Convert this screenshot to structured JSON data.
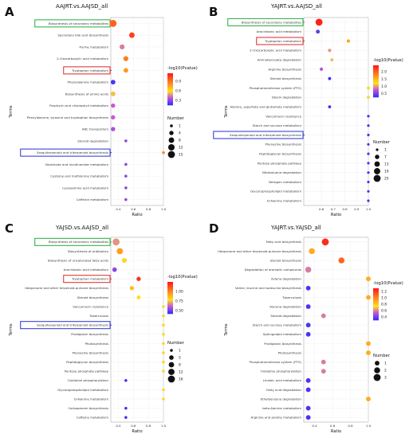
{
  "chart_data": [
    {
      "panel": "A",
      "type": "scatter",
      "title": "AAJRT.vs.AAJSD_all",
      "xlabel": "Ratio",
      "ylabel": "Terms",
      "xlim": [
        0.3,
        1.0
      ],
      "xticks": [
        0.4,
        0.6,
        0.8,
        1.0
      ],
      "xtick_labels": [
        "0.4",
        "0.6",
        "0.8",
        "1.0"
      ],
      "terms": [
        "Biosynthesis of secondary metabolites",
        "Secondary bile acid biosynthesis",
        "Purine metabolism",
        "2-Oxocarboxylic acid metabolism",
        "Tryptophan metabolism",
        "Phenylalanine metabolism",
        "Biosynthesis of amino acids",
        "Porphyrin and chlorophyll metabolism",
        "Phenylalanine, tyrosine and tryptophan biosynthesis",
        "ABC transporters",
        "Steroid degradation",
        "Sesquiterpenoid and triterpenoid biosynthesis",
        "Nicotinate and nicotinamide metabolism",
        "Cysteine and methionine metabolism",
        "Cyanoamino acid metabolism",
        "Caffeine metabolism"
      ],
      "points": [
        {
          "ratio": 0.33,
          "pval": 0.95,
          "number": 15
        },
        {
          "ratio": 0.58,
          "pval": 1.05,
          "number": 8
        },
        {
          "ratio": 0.45,
          "pval": 0.45,
          "number": 6
        },
        {
          "ratio": 0.5,
          "pval": 0.88,
          "number": 6
        },
        {
          "ratio": 0.5,
          "pval": 0.8,
          "number": 5
        },
        {
          "ratio": 0.33,
          "pval": 0.2,
          "number": 5
        },
        {
          "ratio": 0.33,
          "pval": 0.55,
          "number": 5
        },
        {
          "ratio": 0.33,
          "pval": 0.4,
          "number": 4
        },
        {
          "ratio": 0.33,
          "pval": 0.4,
          "number": 4
        },
        {
          "ratio": 0.33,
          "pval": 0.35,
          "number": 4
        },
        {
          "ratio": 0.5,
          "pval": 0.3,
          "number": 1
        },
        {
          "ratio": 1.0,
          "pval": 0.85,
          "number": 1
        },
        {
          "ratio": 0.5,
          "pval": 0.3,
          "number": 1
        },
        {
          "ratio": 0.5,
          "pval": 0.3,
          "number": 1
        },
        {
          "ratio": 0.5,
          "pval": 0.3,
          "number": 1
        },
        {
          "ratio": 0.5,
          "pval": 0.3,
          "number": 1
        }
      ],
      "color_legend": {
        "title": "-log10(Pvalue)",
        "min": 0.15,
        "max": 1.15,
        "ticks": [
          0.9,
          0.6,
          0.3
        ],
        "tick_labels": [
          "0.9",
          "0.6",
          "0.3"
        ]
      },
      "size_legend": {
        "title": "Number",
        "values": [
          1,
          4,
          8,
          12,
          15
        ],
        "labels": [
          "1",
          "4",
          "8",
          "12",
          "15"
        ],
        "max": 15
      },
      "boxes": [
        {
          "index": 0,
          "color": "#1fae3c"
        },
        {
          "index": 4,
          "color": "#e0262a"
        },
        {
          "index": 11,
          "color": "#2630d9"
        }
      ]
    },
    {
      "panel": "B",
      "type": "scatter",
      "title": "YAJRT.vs.AAJSD_all",
      "xlabel": "Ratio",
      "ylabel": "Terms",
      "xlim": [
        0.45,
        1.0
      ],
      "xticks": [
        0.6,
        0.7,
        0.8,
        0.9,
        1.0
      ],
      "xtick_labels": [
        "0.6",
        "0.7",
        "0.8",
        "0.9",
        "1.0"
      ],
      "terms": [
        "Biosynthesis of secondary metabolites",
        "Arachidonic acid metabolism",
        "Tryptophan metabolism",
        "2-Oxocarboxylic acid metabolism",
        "Aminobenzoate degradation",
        "Arginine biosynthesis",
        "Steroid biosynthesis",
        "Phosphotransferase system (PTS)",
        "Dioxin degradation",
        "Alanine, aspartate and glutamate metabolism",
        "Vancomycin resistance",
        "Starch and sucrose metabolism",
        "Sesquiterpenoid and triterpenoid biosynthesis",
        "Phenazine biosynthesis",
        "Peptidoglycan biosynthesis",
        "Pentose phosphate pathway",
        "Nitrotoluene degradation",
        "Nitrogen metabolism",
        "Glycerophospholipid metabolism",
        "D-Alanine metabolism"
      ],
      "points": [
        {
          "ratio": 0.58,
          "pval": 2.4,
          "number": 25
        },
        {
          "ratio": 0.57,
          "pval": 0.45,
          "number": 5
        },
        {
          "ratio": 0.83,
          "pval": 1.6,
          "number": 3
        },
        {
          "ratio": 0.67,
          "pval": 1.0,
          "number": 3
        },
        {
          "ratio": 0.69,
          "pval": 1.1,
          "number": 2
        },
        {
          "ratio": 0.6,
          "pval": 0.75,
          "number": 3
        },
        {
          "ratio": 0.67,
          "pval": 0.3,
          "number": 2
        },
        {
          "ratio": 1.0,
          "pval": 1.3,
          "number": 2
        },
        {
          "ratio": 1.0,
          "pval": 1.2,
          "number": 2
        },
        {
          "ratio": 0.67,
          "pval": 0.3,
          "number": 2
        },
        {
          "ratio": 1.0,
          "pval": 0.35,
          "number": 1
        },
        {
          "ratio": 1.0,
          "pval": 0.35,
          "number": 1
        },
        {
          "ratio": 1.0,
          "pval": 0.35,
          "number": 1
        },
        {
          "ratio": 1.0,
          "pval": 0.35,
          "number": 1
        },
        {
          "ratio": 1.0,
          "pval": 0.35,
          "number": 1
        },
        {
          "ratio": 1.0,
          "pval": 0.35,
          "number": 1
        },
        {
          "ratio": 1.0,
          "pval": 0.35,
          "number": 1
        },
        {
          "ratio": 1.0,
          "pval": 0.35,
          "number": 1
        },
        {
          "ratio": 1.0,
          "pval": 0.35,
          "number": 1
        },
        {
          "ratio": 1.0,
          "pval": 0.35,
          "number": 1
        }
      ],
      "color_legend": {
        "title": "-log10(Pvalue)",
        "min": 0.25,
        "max": 2.45,
        "ticks": [
          2.0,
          1.5,
          1.0,
          0.5
        ],
        "tick_labels": [
          "2.0",
          "1.5",
          "1.0",
          "0.5"
        ]
      },
      "size_legend": {
        "title": "Number",
        "values": [
          1,
          7,
          13,
          19,
          25
        ],
        "labels": [
          "1",
          "7",
          "13",
          "19",
          "25"
        ],
        "max": 25
      },
      "boxes": [
        {
          "index": 0,
          "color": "#1fae3c"
        },
        {
          "index": 2,
          "color": "#e0262a"
        },
        {
          "index": 12,
          "color": "#2630d9"
        }
      ]
    },
    {
      "panel": "C",
      "type": "scatter",
      "title": "YAJSD.vs.AAJSD_all",
      "xlabel": "Ratio",
      "ylabel": "Terms",
      "xlim": [
        0.3,
        1.0
      ],
      "xticks": [
        0.4,
        0.6,
        0.8,
        1.0
      ],
      "xtick_labels": [
        "0.4",
        "0.6",
        "0.8",
        "1.0"
      ],
      "terms": [
        "Biosynthesis of secondary metabolites",
        "Biosynthesis of antibiotics",
        "Biosynthesis of unsaturated fatty acids",
        "Arachidonic acid metabolism",
        "Tryptophan metabolism",
        "Ubiquinone and other terpenoid-quinone biosynthesis",
        "Steroid biosynthesis",
        "Vancomycin resistance",
        "Tuberculosis",
        "Sesquiterpenoid and triterpenoid biosynthesis",
        "Prodigiosin biosynthesis",
        "Photosynthesis",
        "Phenazine biosynthesis",
        "Peptidoglycan biosynthesis",
        "Pentose phosphate pathway",
        "Oxidative phosphorylation",
        "Glycerophospholipid metabolism",
        "D-Alanine metabolism",
        "Carbapenem biosynthesis",
        "Caffeine metabolism"
      ],
      "points": [
        {
          "ratio": 0.37,
          "pval": 0.7,
          "number": 16
        },
        {
          "ratio": 0.42,
          "pval": 0.95,
          "number": 12
        },
        {
          "ratio": 0.48,
          "pval": 0.82,
          "number": 6
        },
        {
          "ratio": 0.35,
          "pval": 0.55,
          "number": 5
        },
        {
          "ratio": 0.67,
          "pval": 1.2,
          "number": 4
        },
        {
          "ratio": 0.58,
          "pval": 0.88,
          "number": 4
        },
        {
          "ratio": 0.67,
          "pval": 0.8,
          "number": 3
        },
        {
          "ratio": 1.0,
          "pval": 0.82,
          "number": 1
        },
        {
          "ratio": 1.0,
          "pval": 0.82,
          "number": 1
        },
        {
          "ratio": 1.0,
          "pval": 0.82,
          "number": 1
        },
        {
          "ratio": 1.0,
          "pval": 0.82,
          "number": 1
        },
        {
          "ratio": 1.0,
          "pval": 0.82,
          "number": 1
        },
        {
          "ratio": 1.0,
          "pval": 0.82,
          "number": 1
        },
        {
          "ratio": 1.0,
          "pval": 0.82,
          "number": 1
        },
        {
          "ratio": 1.0,
          "pval": 0.82,
          "number": 1
        },
        {
          "ratio": 0.5,
          "pval": 0.45,
          "number": 1
        },
        {
          "ratio": 1.0,
          "pval": 0.82,
          "number": 1
        },
        {
          "ratio": 1.0,
          "pval": 0.82,
          "number": 1
        },
        {
          "ratio": 0.5,
          "pval": 0.45,
          "number": 1
        },
        {
          "ratio": 0.5,
          "pval": 0.45,
          "number": 1
        }
      ],
      "color_legend": {
        "title": "-log10(Pvalue)",
        "min": 0.42,
        "max": 1.25,
        "ticks": [
          1.0,
          0.75,
          0.5
        ],
        "tick_labels": [
          "1.00",
          "0.75",
          "0.50"
        ]
      },
      "size_legend": {
        "title": "Number",
        "values": [
          1,
          5,
          8,
          12,
          16
        ],
        "labels": [
          "1",
          "5",
          "8",
          "12",
          "16"
        ],
        "max": 16
      },
      "boxes": [
        {
          "index": 0,
          "color": "#1fae3c"
        },
        {
          "index": 4,
          "color": "#e0262a"
        },
        {
          "index": 9,
          "color": "#2630d9"
        }
      ]
    },
    {
      "panel": "D",
      "type": "scatter",
      "title": "YAJRT.vs.YAJSD_all",
      "xlabel": "Ratio",
      "ylabel": "Terms",
      "xlim": [
        0.28,
        1.0
      ],
      "xticks": [
        0.4,
        0.6,
        0.8,
        1.0
      ],
      "xtick_labels": [
        "0.4",
        "0.6",
        "0.8",
        "1.0"
      ],
      "terms": [
        "Fatty acid biosynthesis",
        "Ubiquinone and other terpenoid-quinone biosynthesis",
        "Steroid biosynthesis",
        "Degradation of aromatic compounds",
        "Xylene degradation",
        "Valine, leucine and isoleucine biosynthesis",
        "Tuberculosis",
        "Styrene degradation",
        "Steroid degradation",
        "Starch and sucrose metabolism",
        "Sphingolipid metabolism",
        "Prodigiosin biosynthesis",
        "Photosynthesis",
        "Phosphotransferase system (PTS)",
        "Oxidative phosphorylation",
        "Linoleic acid metabolism",
        "Fatty acid degradation",
        "Ethylbenzene degradation",
        "beta-Alanine metabolism",
        "Arginine and proline metabolism"
      ],
      "points": [
        {
          "ratio": 0.52,
          "pval": 1.25,
          "number": 3
        },
        {
          "ratio": 0.37,
          "pval": 0.9,
          "number": 2
        },
        {
          "ratio": 0.7,
          "pval": 1.1,
          "number": 2
        },
        {
          "ratio": 0.33,
          "pval": 0.6,
          "number": 2
        },
        {
          "ratio": 1.0,
          "pval": 0.9,
          "number": 1
        },
        {
          "ratio": 0.33,
          "pval": 0.35,
          "number": 1
        },
        {
          "ratio": 1.0,
          "pval": 0.9,
          "number": 1
        },
        {
          "ratio": 0.33,
          "pval": 0.35,
          "number": 1
        },
        {
          "ratio": 0.5,
          "pval": 0.6,
          "number": 1
        },
        {
          "ratio": 0.33,
          "pval": 0.35,
          "number": 1
        },
        {
          "ratio": 0.33,
          "pval": 0.35,
          "number": 1
        },
        {
          "ratio": 1.0,
          "pval": 0.9,
          "number": 1
        },
        {
          "ratio": 1.0,
          "pval": 0.9,
          "number": 1
        },
        {
          "ratio": 0.5,
          "pval": 0.6,
          "number": 1
        },
        {
          "ratio": 0.5,
          "pval": 0.6,
          "number": 1
        },
        {
          "ratio": 0.33,
          "pval": 0.35,
          "number": 1
        },
        {
          "ratio": 0.33,
          "pval": 0.35,
          "number": 1
        },
        {
          "ratio": 1.0,
          "pval": 0.9,
          "number": 1
        },
        {
          "ratio": 0.33,
          "pval": 0.35,
          "number": 1
        },
        {
          "ratio": 0.33,
          "pval": 0.35,
          "number": 1
        }
      ],
      "color_legend": {
        "title": "-log10(Pvalue)",
        "min": 0.3,
        "max": 1.3,
        "ticks": [
          1.2,
          1.0,
          0.8,
          0.6,
          0.4
        ],
        "tick_labels": [
          "1.2",
          "1.0",
          "0.8",
          "0.6",
          "0.4"
        ]
      },
      "size_legend": {
        "title": "Number",
        "values": [
          1,
          2,
          3
        ],
        "labels": [
          "1",
          "2",
          "3"
        ],
        "max": 3
      },
      "boxes": []
    }
  ]
}
